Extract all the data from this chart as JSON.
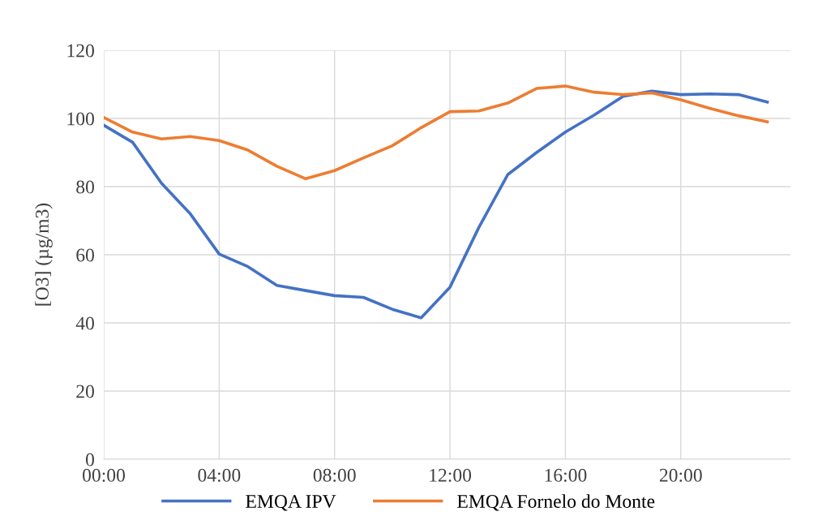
{
  "chart_data": {
    "type": "line",
    "ylabel": "[O3] (µg/m3)",
    "x": [
      0,
      1,
      2,
      3,
      4,
      5,
      6,
      7,
      8,
      9,
      10,
      11,
      12,
      13,
      14,
      15,
      16,
      17,
      18,
      19,
      20,
      21,
      22,
      23
    ],
    "series": [
      {
        "name": "EMQA IPV",
        "color": "#4472c4",
        "values": [
          98,
          93,
          81,
          72,
          60.2,
          56.5,
          51,
          49.5,
          48,
          47.5,
          44,
          41.5,
          50.5,
          68,
          83.5,
          90,
          96,
          101,
          106.5,
          108,
          107,
          107.2,
          107,
          104.8
        ]
      },
      {
        "name": "EMQA Fornelo do Monte",
        "color": "#ed7d31",
        "values": [
          100.3,
          96,
          94,
          94.7,
          93.5,
          90.7,
          86,
          82.3,
          84.7,
          88.4,
          92,
          97.3,
          102,
          102.2,
          104.5,
          108.8,
          109.5,
          107.7,
          107,
          107.5,
          105.5,
          103,
          100.8,
          99
        ]
      }
    ],
    "xlim": [
      0,
      23.8
    ],
    "xticks": [
      {
        "value": 0,
        "label": "00:00"
      },
      {
        "value": 4,
        "label": "04:00"
      },
      {
        "value": 8,
        "label": "08:00"
      },
      {
        "value": 12,
        "label": "12:00"
      },
      {
        "value": 16,
        "label": "16:00"
      },
      {
        "value": 20,
        "label": "20:00"
      }
    ],
    "ylim": [
      0,
      120
    ],
    "yticks": [
      0,
      20,
      40,
      60,
      80,
      100,
      120
    ],
    "grid": true,
    "legend": "bottom",
    "marker": "none",
    "line_style": "solid"
  }
}
